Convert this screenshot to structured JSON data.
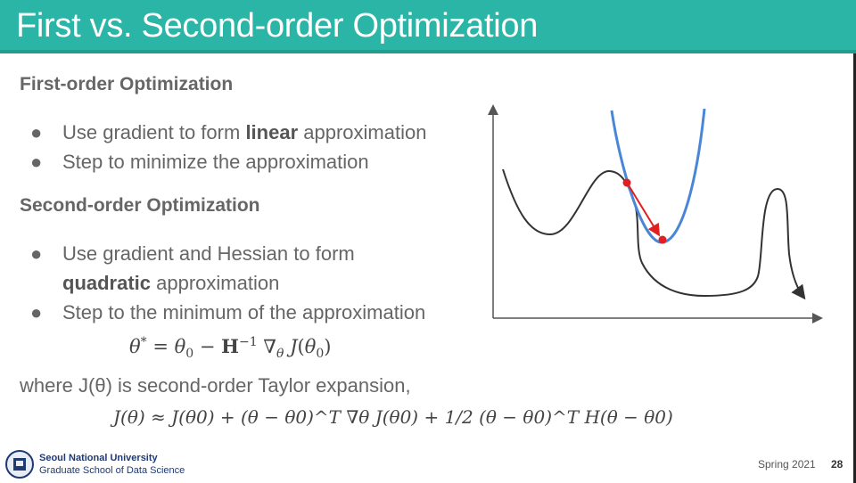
{
  "header": {
    "title": "First vs. Second-order Optimization"
  },
  "first": {
    "heading": "First-order Optimization",
    "bullets": [
      {
        "pre": "Use gradient to form ",
        "bold": "linear",
        "post": " approximation"
      },
      {
        "text": "Step to minimize the approximation"
      }
    ]
  },
  "second": {
    "heading": "Second-order Optimization",
    "bullets": [
      {
        "line1": "Use gradient and Hessian to form",
        "bold": "quadratic",
        "post": " approximation"
      },
      {
        "text": "Step to the minimum of the approximation"
      }
    ]
  },
  "bullet_glyph": "●",
  "update_eq": "θ* = θ0 − H^-1 ∇θ J(θ0)",
  "where_text": "where J(θ) is second-order Taylor expansion,",
  "taylor_eq": "J(θ) ≈ J(θ0) + (θ − θ0)^T ∇θ J(θ0) + 1/2 (θ − θ0)^T H(θ − θ0)",
  "figure": {
    "colors": {
      "objective": "#333333",
      "quadratic": "#4a86d8",
      "step": "#e02020",
      "axes": "#555555"
    }
  },
  "footer": {
    "university": "Seoul National University",
    "school": "Graduate School of Data Science",
    "term": "Spring 2021",
    "page": "28"
  }
}
